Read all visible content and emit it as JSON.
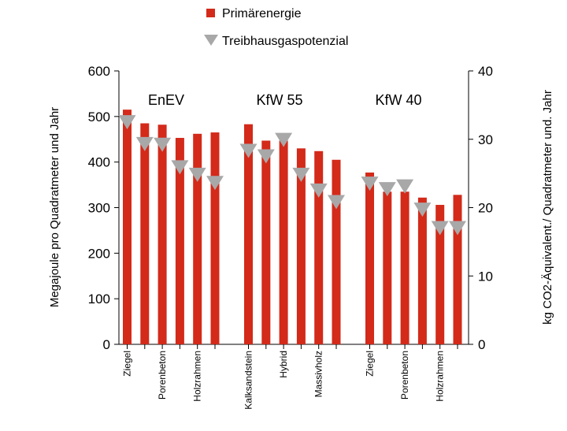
{
  "chart_data": {
    "type": "bar",
    "legend": [
      {
        "name": "Primärenergie",
        "color": "#d32a1a",
        "marker": "square"
      },
      {
        "name": "Treibhausgaspotenzial",
        "color": "#a8a8a8",
        "marker": "triangle-down"
      }
    ],
    "legend_position": "top-center",
    "ylabel": "Megajoule  pro  Quadratmeter  und  Jahr",
    "y2label": "kg  CO2-Äquivalent./  Quadratmeter  und.  Jahr",
    "ylim": [
      0,
      600
    ],
    "y2lim": [
      0,
      40
    ],
    "yticks": [
      "0",
      "100",
      "200",
      "300",
      "400",
      "500",
      "600"
    ],
    "y2ticks": [
      "0",
      "10",
      "20",
      "30",
      "40"
    ],
    "grid": false,
    "groups": [
      {
        "label": "EnEV",
        "primary_energy": [
          515,
          485,
          482,
          453,
          462,
          465
        ],
        "ghg_potential": [
          32.5,
          29.3,
          29.2,
          25.9,
          24.8,
          23.6
        ],
        "tick_labels": [
          "Ziegel",
          "Porenbeton",
          "Holzrahmen"
        ]
      },
      {
        "label": "KfW 55",
        "primary_energy": [
          483,
          447,
          447,
          430,
          424,
          405
        ],
        "ghg_potential": [
          28.3,
          27.5,
          29.9,
          24.8,
          22.5,
          20.8
        ],
        "tick_labels": [
          "Kalksandstein",
          "Hybrid",
          "Massivholz"
        ]
      },
      {
        "label": "KfW 40",
        "primary_energy": [
          377,
          335,
          335,
          322,
          306,
          328
        ],
        "ghg_potential": [
          23.5,
          22.7,
          23.1,
          19.7,
          17.0,
          17.0
        ],
        "tick_labels": [
          "Ziegel",
          "Porenbeton",
          "Holzrahmen"
        ]
      }
    ]
  }
}
